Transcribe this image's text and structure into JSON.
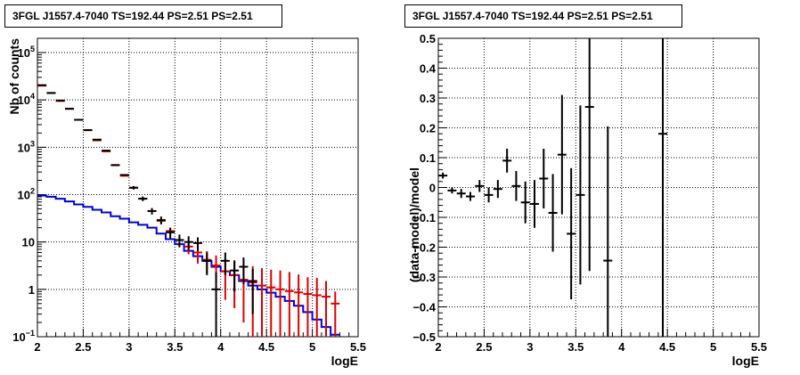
{
  "chart_data": [
    {
      "type": "step",
      "title": "3FGL J1557.4-7040 TS=192.44 PS=2.51 PS=2.51",
      "xlabel": "logE",
      "ylabel": "Nb of counts",
      "xlim": [
        2,
        5.5
      ],
      "ylim": [
        0.1,
        200000
      ],
      "yscale": "log",
      "grid": true,
      "xticks": [
        "2",
        "2.5",
        "3",
        "3.5",
        "4",
        "4.5",
        "5",
        "5.5"
      ],
      "yticks": [
        {
          "value": 0.1,
          "label": "10⁻¹"
        },
        {
          "value": 1,
          "label": "1"
        },
        {
          "value": 10,
          "label": "10"
        },
        {
          "value": 100,
          "label": "10²"
        },
        {
          "value": 1000,
          "label": "10³"
        },
        {
          "value": 10000,
          "label": "10⁴"
        },
        {
          "value": 100000,
          "label": "10⁵"
        }
      ],
      "colors": {
        "data": "#000000",
        "model": "#dd0000",
        "background": "#0000dd"
      },
      "x": [
        2.05,
        2.15,
        2.25,
        2.35,
        2.45,
        2.55,
        2.65,
        2.75,
        2.85,
        2.95,
        3.05,
        3.15,
        3.25,
        3.35,
        3.45,
        3.55,
        3.65,
        3.75,
        3.85,
        3.95,
        4.05,
        4.15,
        4.25,
        4.35,
        4.45,
        4.55,
        4.65,
        4.75,
        4.85,
        4.95,
        5.05,
        5.15,
        5.25
      ],
      "series": [
        {
          "values": [
            20500,
            14000,
            9700,
            6500,
            3800,
            2300,
            1450,
            850,
            420,
            260,
            140,
            82,
            45,
            29,
            16,
            11,
            10,
            9.5,
            4,
            1,
            4,
            2.5,
            3,
            1.5,
            null,
            null,
            null,
            null,
            null,
            null,
            null,
            null,
            null
          ],
          "err_low": [
            0,
            0,
            0,
            0,
            0,
            0,
            0,
            0,
            0,
            0,
            12,
            9,
            7,
            5.5,
            4,
            3.3,
            3.2,
            3,
            2,
            0.9,
            2,
            1.6,
            1.7,
            1.2,
            null,
            null,
            null,
            null,
            null,
            null,
            null,
            null,
            null
          ],
          "err_high": [
            0,
            0,
            0,
            0,
            0,
            0,
            0,
            0,
            0,
            0,
            12,
            9,
            7,
            5.5,
            4,
            3.3,
            3.2,
            3,
            2,
            1.3,
            2,
            1.6,
            1.7,
            1.2,
            null,
            null,
            null,
            null,
            null,
            null,
            null,
            null,
            null
          ]
        },
        {
          "values": [
            20000,
            14000,
            9500,
            6500,
            3800,
            2300,
            1400,
            820,
            420,
            250,
            140,
            82,
            45,
            28,
            17,
            11,
            8,
            6,
            4.2,
            3.2,
            2.4,
            2.0,
            1.6,
            1.4,
            1.2,
            1.1,
            1.0,
            0.92,
            0.86,
            0.8,
            0.75,
            0.7,
            0.5
          ],
          "err_low": [
            0,
            0,
            0,
            0,
            0,
            0,
            0,
            0,
            0,
            0,
            0,
            0,
            3,
            3,
            3,
            3,
            2.5,
            2.5,
            2,
            1.8,
            1.8,
            1.6,
            1.4,
            1.3,
            1.15,
            1.05,
            0.97,
            0.9,
            0.85,
            0.79,
            0.74,
            0.69,
            0.49
          ],
          "err_high": [
            0,
            0,
            0,
            0,
            0,
            0,
            0,
            0,
            0,
            0,
            0,
            0,
            3,
            3,
            3,
            3,
            2.5,
            2.5,
            2.2,
            2.0,
            2.0,
            1.8,
            1.8,
            1.7,
            1.6,
            1.5,
            1.5,
            1.4,
            1.2,
            1.0,
            1.0,
            0.8,
            0.4
          ]
        },
        {
          "values": [
            95,
            90,
            82,
            72,
            62,
            55,
            48,
            42,
            35,
            31,
            26,
            23,
            20,
            15,
            11.5,
            9.0,
            6.5,
            5.0,
            4.0,
            3.0,
            2.4,
            2.0,
            1.5,
            1.2,
            1.0,
            0.85,
            0.7,
            0.57,
            0.45,
            0.33,
            0.23,
            0.16,
            0.11
          ]
        }
      ]
    },
    {
      "type": "errorbar",
      "title": "3FGL J1557.4-7040 TS=192.44 PS=2.51 PS=2.51",
      "xlabel": "logE",
      "ylabel": "(data-model)/model",
      "xlim": [
        2,
        5.5
      ],
      "ylim": [
        -0.5,
        0.5
      ],
      "grid": true,
      "xticks": [
        "2",
        "2.5",
        "3",
        "3.5",
        "4",
        "4.5",
        "5",
        "5.5"
      ],
      "yticks": [
        "−0.5",
        "−0.4",
        "−0.3",
        "−0.2",
        "−0.1",
        "0",
        "0.1",
        "0.2",
        "0.3",
        "0.4",
        "0.5"
      ],
      "x": [
        2.05,
        2.15,
        2.25,
        2.35,
        2.45,
        2.55,
        2.65,
        2.75,
        2.85,
        2.95,
        3.05,
        3.15,
        3.25,
        3.35,
        3.45,
        3.55,
        3.65,
        3.85,
        4.45
      ],
      "y": [
        0.04,
        -0.01,
        -0.02,
        -0.03,
        0.005,
        -0.025,
        -0.005,
        0.09,
        0.005,
        -0.05,
        -0.055,
        0.03,
        -0.085,
        0.11,
        -0.155,
        -0.025,
        0.27,
        -0.245,
        0.18
      ],
      "err": [
        0.01,
        0.01,
        0.015,
        0.015,
        0.02,
        0.025,
        0.03,
        0.04,
        0.05,
        0.07,
        0.08,
        0.1,
        0.13,
        0.2,
        0.22,
        0.3,
        0.55,
        0.45,
        0.9
      ]
    }
  ]
}
